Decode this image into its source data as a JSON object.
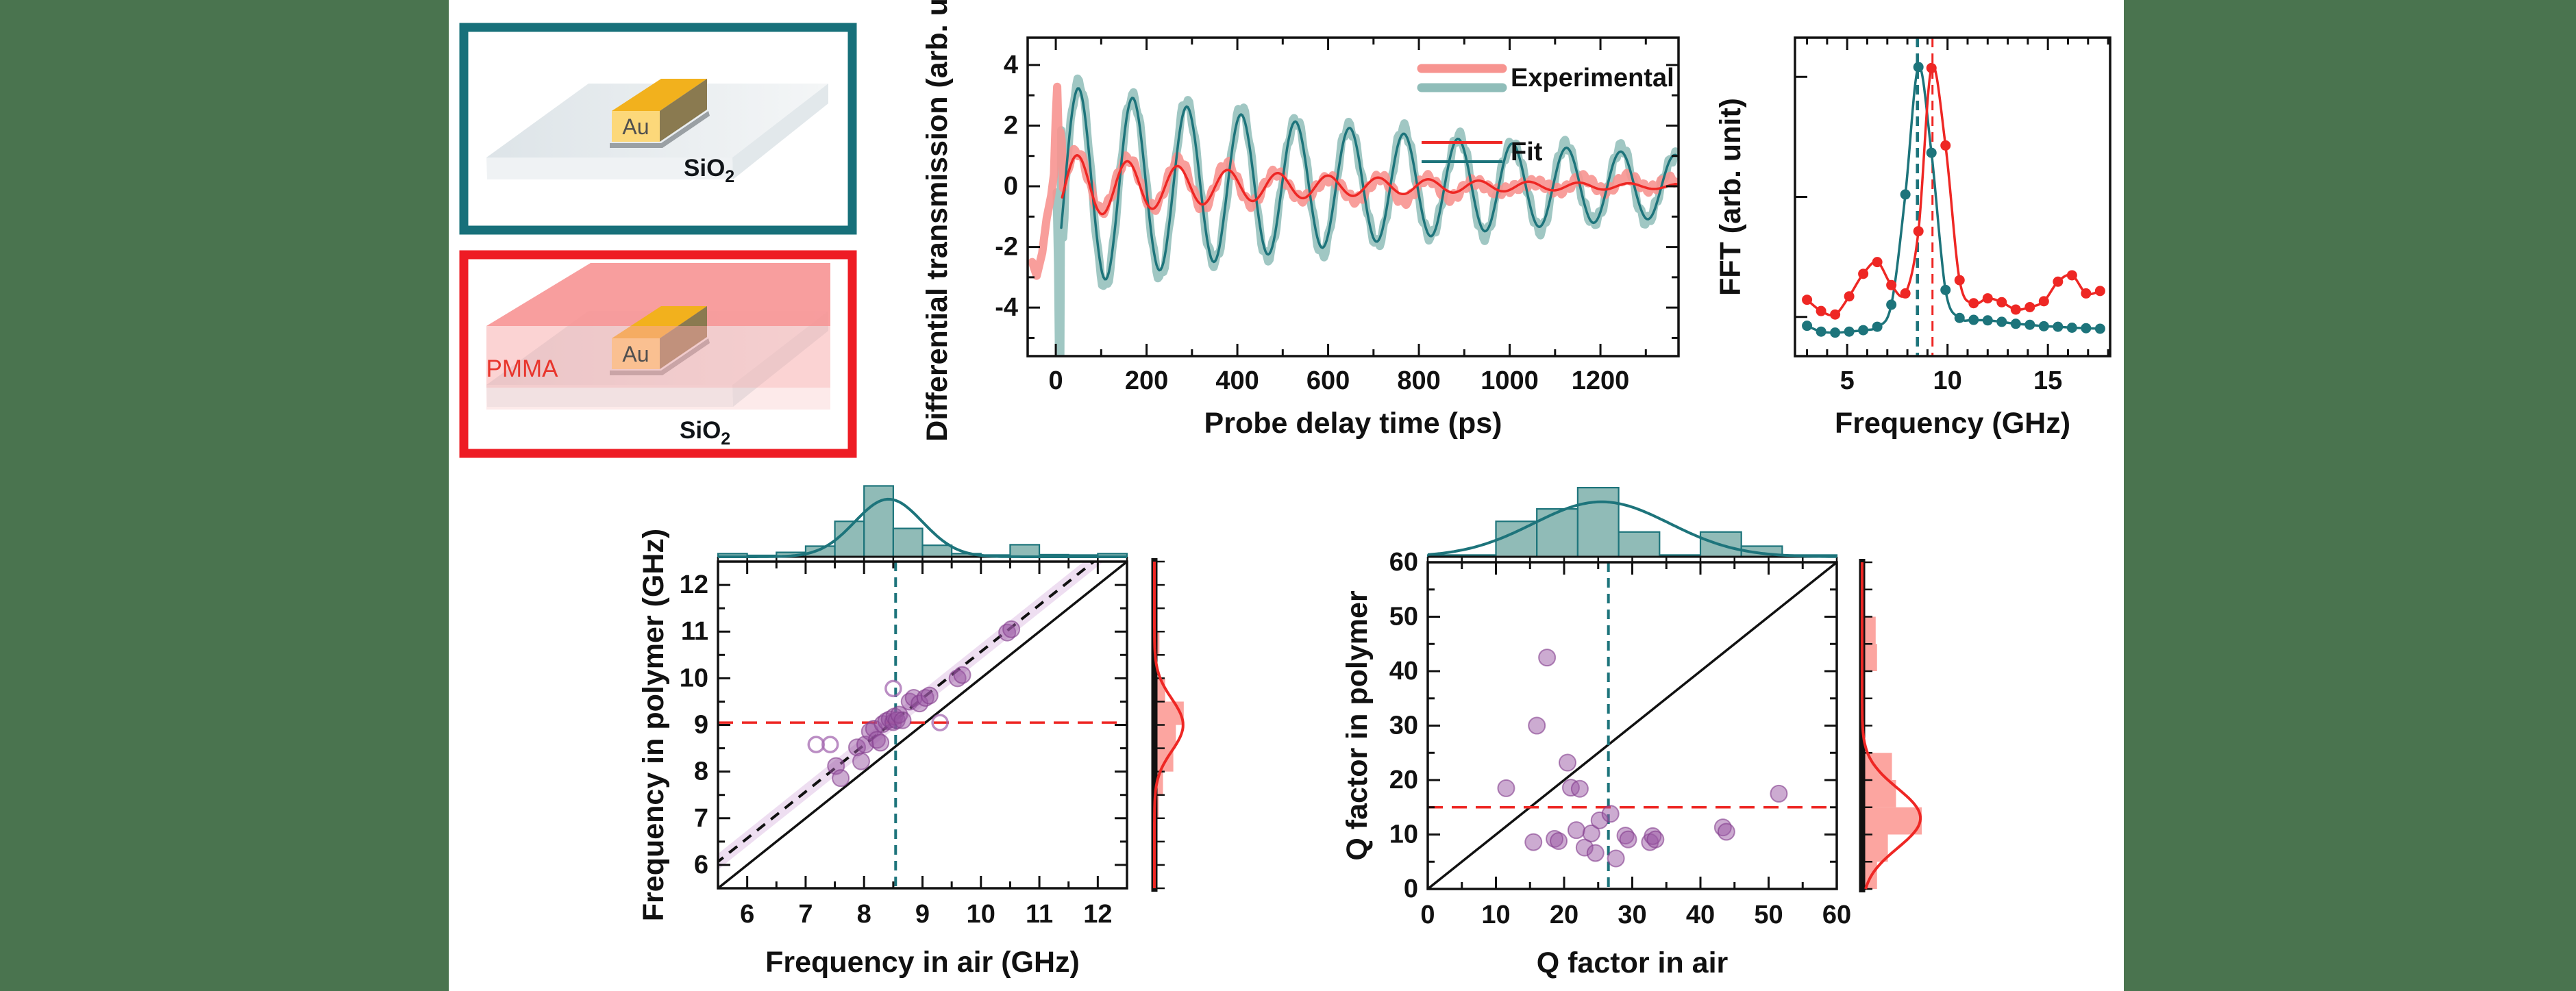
{
  "colors": {
    "band_green": "#4a744f",
    "axis": "#111111",
    "teal": "#1d747b",
    "teal_light": "#8fbdb9",
    "teal_hist_fill": "rgba(124,175,170,0.85)",
    "red": "#ee2724",
    "salmon": "#f79490",
    "red_hist_fill": "rgba(251,130,124,0.72)",
    "purple": "#9a58a4",
    "purple_fill": "rgba(154,88,164,0.5)",
    "purple_edge": "rgba(130,60,140,0.6)",
    "open_circle": "rgba(164,104,176,0.75)",
    "lavender_band": "rgba(205,160,215,0.35)",
    "box_teal": "#17707a",
    "box_red": "#ee1c24",
    "slab_top_a": "#dde4e8",
    "slab_top_b": "#f4f6f7",
    "slab_front": "#eff2f4",
    "slab_side": "#e2e8eb",
    "gold_top": "#f2b11d",
    "gold_front": "#fcd87a",
    "gold_side": "#8a7a50",
    "bar_shadow": "#9aa0a4",
    "pink_wall": "rgba(247,148,148,0.9)",
    "pink_mid": "rgba(248,168,168,0.5)",
    "pink_front": "rgba(250,190,190,0.32)",
    "pmma_red": "#e8352c",
    "au_text": "#4f4f4f",
    "ink": "#101418"
  },
  "schematics": {
    "air": {
      "au_label": "Au",
      "sio2_main": "SiO",
      "sio2_sub": "2"
    },
    "polymer": {
      "au_label": "Au",
      "sio2_main": "SiO",
      "sio2_sub": "2",
      "pmma_label": "PMMA"
    }
  },
  "chart_data": [
    {
      "id": "time_plot",
      "type": "line",
      "xlabel": "Probe delay time (ps)",
      "ylabel": "Differential transmission (arb. unit)",
      "xlim": [
        -62,
        1372
      ],
      "ylim": [
        -5.6,
        4.9
      ],
      "xticks": [
        0,
        200,
        400,
        600,
        800,
        1000,
        1200
      ],
      "yticks": [
        -4,
        -2,
        0,
        2,
        4
      ],
      "x_minor_step": 100,
      "y_minor_step": 1,
      "grid": false,
      "legend": {
        "position": "top-right",
        "entries": [
          {
            "label": "Experimental",
            "swatches": [
              "salmon",
              "teal_light"
            ],
            "thick": true
          },
          {
            "label": "Fit",
            "swatches": [
              "red",
              "teal"
            ],
            "thick": false
          }
        ]
      },
      "series": [
        {
          "name": "air-experimental",
          "color_key": "teal_light",
          "width": 12,
          "opacity": 0.85,
          "prefix": [
            [
              2,
              -0.2
            ],
            [
              5,
              -2.6
            ],
            [
              7,
              -5.5
            ],
            [
              10,
              -5.55
            ],
            [
              12,
              1.85
            ],
            [
              14,
              0.4
            ],
            [
              16,
              -1.7
            ],
            [
              19,
              -1.05
            ]
          ],
          "osc": {
            "amp": 3.55,
            "period": 119.5,
            "phase_t": 20,
            "tau": 1150,
            "t_start": 21,
            "noise": [
              [
                0.16,
                0.41,
                0.7
              ],
              [
                0.11,
                0.09,
                2.0
              ]
            ]
          }
        },
        {
          "name": "polymer-experimental",
          "color_key": "salmon",
          "width": 12,
          "opacity": 0.9,
          "prefix": [
            [
              -52,
              -2.5
            ],
            [
              -42,
              -2.95
            ],
            [
              -30,
              -2.2
            ],
            [
              -20,
              -1.05
            ],
            [
              -10,
              -0.3
            ],
            [
              -4,
              0.4
            ],
            [
              0,
              2.3
            ],
            [
              3,
              3.28
            ],
            [
              7,
              1.15
            ],
            [
              10,
              1.8
            ],
            [
              13,
              1.5
            ]
          ],
          "osc": {
            "amp": 1.2,
            "period": 110.5,
            "phase_t": 20,
            "tau": 560,
            "t_start": 16,
            "noise": [
              [
                0.13,
                0.33,
                1.2
              ],
              [
                0.1,
                0.071,
                0.3
              ],
              [
                0.1,
                0.0052,
                0.8
              ]
            ]
          }
        },
        {
          "name": "air-fit",
          "color_key": "teal",
          "width": 3.5,
          "opacity": 1,
          "osc": {
            "amp": 3.38,
            "period": 119.5,
            "phase_t": 20,
            "tau": 1150,
            "t_start": 12
          }
        },
        {
          "name": "polymer-fit",
          "color_key": "red",
          "width": 3.5,
          "opacity": 1,
          "osc": {
            "amp": 1.12,
            "period": 110.5,
            "phase_t": 20,
            "tau": 520,
            "t_start": 14
          }
        }
      ]
    },
    {
      "id": "fft_plot",
      "type": "line",
      "xlabel": "Frequency (GHz)",
      "ylabel": "FFT (arb. unit)",
      "xlim": [
        2.4,
        18.1
      ],
      "ylim": [
        0,
        6.5
      ],
      "xticks": [
        5,
        10,
        15
      ],
      "x_minor_step": 1,
      "ytick_values": [
        0.8,
        3.25,
        5.7
      ],
      "vlines": [
        {
          "x": 8.5,
          "color_key": "teal",
          "width": 4.5,
          "dash": "14 9"
        },
        {
          "x": 9.25,
          "color_key": "red",
          "width": 3,
          "dash": "14 9"
        }
      ],
      "series": [
        {
          "name": "air",
          "color_key": "teal",
          "marker_r": 7.5,
          "x": [
            3.0,
            3.7,
            4.4,
            5.1,
            5.8,
            6.5,
            7.2,
            7.9,
            8.55,
            9.2,
            9.9,
            10.6,
            11.3,
            12.0,
            12.7,
            13.4,
            14.1,
            14.8,
            15.5,
            16.2,
            16.9,
            17.6
          ],
          "y": [
            0.62,
            0.5,
            0.48,
            0.5,
            0.53,
            0.6,
            1.05,
            3.3,
            5.9,
            4.15,
            1.35,
            0.78,
            0.74,
            0.73,
            0.7,
            0.66,
            0.64,
            0.61,
            0.6,
            0.58,
            0.57,
            0.56
          ]
        },
        {
          "name": "polymer",
          "color_key": "red",
          "marker_r": 7.5,
          "x": [
            3.0,
            3.7,
            4.4,
            5.1,
            5.8,
            6.5,
            7.2,
            7.9,
            8.55,
            9.2,
            9.9,
            10.6,
            11.3,
            12.0,
            12.7,
            13.4,
            14.1,
            14.8,
            15.5,
            16.2,
            16.9,
            17.6
          ],
          "y": [
            1.15,
            0.92,
            0.85,
            1.22,
            1.68,
            1.92,
            1.45,
            1.28,
            2.55,
            5.88,
            4.3,
            1.55,
            1.08,
            1.18,
            1.1,
            0.95,
            1.0,
            1.12,
            1.52,
            1.65,
            1.28,
            1.33
          ]
        }
      ]
    },
    {
      "id": "freq_joint",
      "type": "scatter",
      "xlabel": "Frequency in air (GHz)",
      "ylabel": "Frequency in polymer (GHz)",
      "xlim": [
        5.5,
        12.5
      ],
      "ylim": [
        5.5,
        12.5
      ],
      "ticks": [
        6,
        7,
        8,
        9,
        10,
        11,
        12
      ],
      "minor_step": 0.5,
      "identity_line": true,
      "fit_line": {
        "slope": 1,
        "intercept": 0.57,
        "band_halfwidth": 0.17
      },
      "vline": {
        "x": 8.54,
        "color_key": "teal",
        "width": 4,
        "dash": "14 9"
      },
      "hline": {
        "y": 9.05,
        "color_key": "red",
        "width": 3.5,
        "dash": "22 13"
      },
      "points": [
        [
          7.52,
          8.12
        ],
        [
          7.6,
          7.86
        ],
        [
          7.88,
          8.52
        ],
        [
          7.95,
          8.22
        ],
        [
          8.02,
          8.58
        ],
        [
          8.1,
          8.86
        ],
        [
          8.17,
          8.92
        ],
        [
          8.22,
          8.68
        ],
        [
          8.28,
          8.62
        ],
        [
          8.32,
          9.02
        ],
        [
          8.38,
          9.08
        ],
        [
          8.44,
          9.12
        ],
        [
          8.5,
          9.06
        ],
        [
          8.52,
          9.18
        ],
        [
          8.56,
          9.1
        ],
        [
          8.6,
          9.22
        ],
        [
          8.66,
          9.1
        ],
        [
          8.78,
          9.5
        ],
        [
          8.85,
          9.58
        ],
        [
          8.95,
          9.46
        ],
        [
          9.05,
          9.58
        ],
        [
          9.12,
          9.63
        ],
        [
          9.6,
          10.0
        ],
        [
          9.68,
          10.07
        ],
        [
          10.45,
          10.98
        ],
        [
          10.52,
          11.05
        ]
      ],
      "open_points": [
        [
          7.18,
          8.58
        ],
        [
          7.42,
          8.58
        ],
        [
          8.5,
          9.78
        ],
        [
          9.3,
          9.05
        ]
      ],
      "top_hist": {
        "color": "teal",
        "bin_edges": [
          5.5,
          6,
          6.5,
          7,
          7.5,
          8,
          8.5,
          9,
          9.5,
          10,
          10.5,
          11,
          11.5,
          12,
          12.5
        ],
        "counts": [
          0.18,
          0.08,
          0.25,
          0.6,
          2.0,
          4.0,
          1.6,
          0.65,
          0.18,
          0.1,
          0.68,
          0.12,
          0.1,
          0.18
        ],
        "count_max": 4.25,
        "curve": {
          "mean": 8.42,
          "sigma": 0.58,
          "peak": 3.25
        }
      },
      "right_hist": {
        "color": "red",
        "bin_edges": [
          7,
          7.5,
          8,
          8.5,
          9,
          9.5,
          10,
          10.5,
          11,
          11.5
        ],
        "counts": [
          0.3,
          0.6,
          1.32,
          1.5,
          2.05,
          0.75,
          0.12,
          0.35,
          0.1
        ],
        "count_max": 2.2,
        "curve": {
          "mean": 9.0,
          "sigma": 0.56,
          "peak": 2.0
        }
      }
    },
    {
      "id": "q_joint",
      "type": "scatter",
      "xlabel": "Q factor in air",
      "ylabel": "Q factor in polymer",
      "xlim": [
        0,
        60
      ],
      "ylim": [
        0,
        60
      ],
      "ticks": [
        0,
        10,
        20,
        30,
        40,
        50,
        60
      ],
      "minor_step": 5,
      "identity_line": true,
      "vline": {
        "x": 26.5,
        "color_key": "teal",
        "width": 4,
        "dash": "14 9"
      },
      "hline": {
        "y": 15,
        "color_key": "red",
        "width": 3.5,
        "dash": "22 13"
      },
      "points": [
        [
          11.5,
          18.5
        ],
        [
          15.5,
          8.6
        ],
        [
          16.0,
          30.0
        ],
        [
          17.5,
          42.5
        ],
        [
          18.6,
          9.2
        ],
        [
          19.2,
          8.8
        ],
        [
          20.5,
          23.2
        ],
        [
          21.0,
          18.6
        ],
        [
          21.8,
          10.8
        ],
        [
          22.3,
          18.4
        ],
        [
          23.0,
          7.6
        ],
        [
          24.0,
          10.2
        ],
        [
          24.6,
          6.6
        ],
        [
          25.2,
          12.6
        ],
        [
          26.8,
          13.8
        ],
        [
          27.6,
          5.6
        ],
        [
          29.0,
          9.8
        ],
        [
          29.4,
          9.1
        ],
        [
          32.6,
          8.6
        ],
        [
          33.0,
          9.7
        ],
        [
          33.4,
          9.1
        ],
        [
          43.3,
          11.3
        ],
        [
          43.8,
          10.5
        ],
        [
          51.5,
          17.5
        ]
      ],
      "open_points": [],
      "top_hist": {
        "color": "teal",
        "bin_edges": [
          0,
          10,
          16,
          22,
          28,
          34,
          40,
          46,
          52,
          60
        ],
        "counts": [
          0.1,
          2.0,
          2.7,
          3.9,
          1.4,
          0.1,
          1.4,
          0.6,
          0.1
        ],
        "count_max": 4.25,
        "curve": {
          "mean": 25.5,
          "sigma": 10,
          "peak": 3.1
        }
      },
      "right_hist": {
        "color": "red",
        "bin_edges": [
          0,
          5,
          10,
          15,
          20,
          25,
          30,
          35,
          40,
          45,
          50
        ],
        "counts": [
          0.55,
          0.95,
          2.2,
          1.25,
          1.1,
          0,
          0,
          0,
          0.55,
          0.5
        ],
        "count_max": 2.4,
        "curve": {
          "mean": 13,
          "sigma": 5.5,
          "peak": 2.15
        }
      }
    }
  ]
}
